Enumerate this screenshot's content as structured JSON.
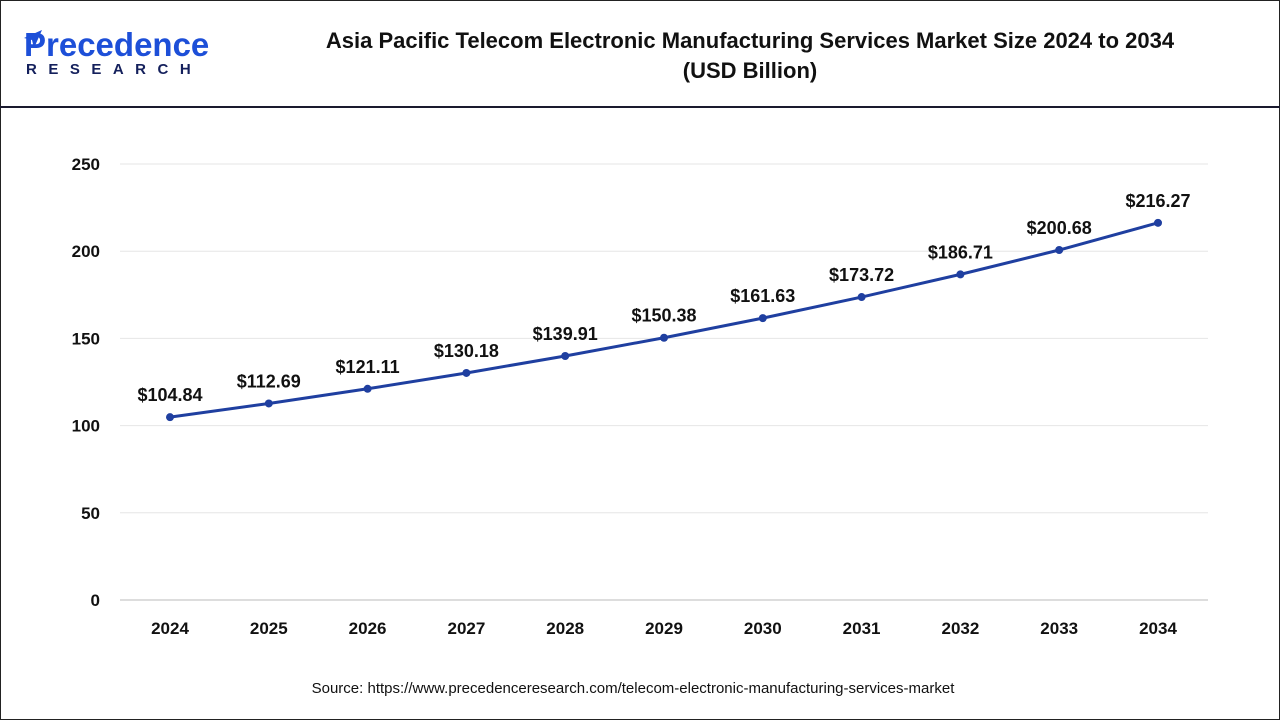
{
  "header": {
    "logo_line1": "Precedence",
    "logo_line2": "RESEARCH",
    "title_line1": "Asia Pacific Telecom Electronic Manufacturing Services Market Size 2024 to 2034",
    "title_line2": "(USD Billion)"
  },
  "source": "Source: https://www.precedenceresearch.com/telecom-electronic-manufacturing-services-market",
  "colors": {
    "line": "#1f3fa0",
    "grid": "#e6e6e6",
    "logo_blue": "#1d4fd8",
    "logo_navy": "#14205c"
  },
  "chart_data": {
    "type": "line",
    "title": "Asia Pacific Telecom Electronic Manufacturing Services Market Size 2024 to 2034 (USD Billion)",
    "categories": [
      "2024",
      "2025",
      "2026",
      "2027",
      "2028",
      "2029",
      "2030",
      "2031",
      "2032",
      "2033",
      "2034"
    ],
    "values": [
      104.84,
      112.69,
      121.11,
      130.18,
      139.91,
      150.38,
      161.63,
      173.72,
      186.71,
      200.68,
      216.27
    ],
    "data_labels": [
      "$104.84",
      "$112.69",
      "$121.11",
      "$130.18",
      "$139.91",
      "$150.38",
      "$161.63",
      "$173.72",
      "$186.71",
      "$200.68",
      "$216.27"
    ],
    "yticks": [
      0,
      50,
      100,
      150,
      200,
      250
    ],
    "ylim": [
      0,
      250
    ],
    "xlabel": "",
    "ylabel": "",
    "grid": true,
    "legend": "none"
  }
}
